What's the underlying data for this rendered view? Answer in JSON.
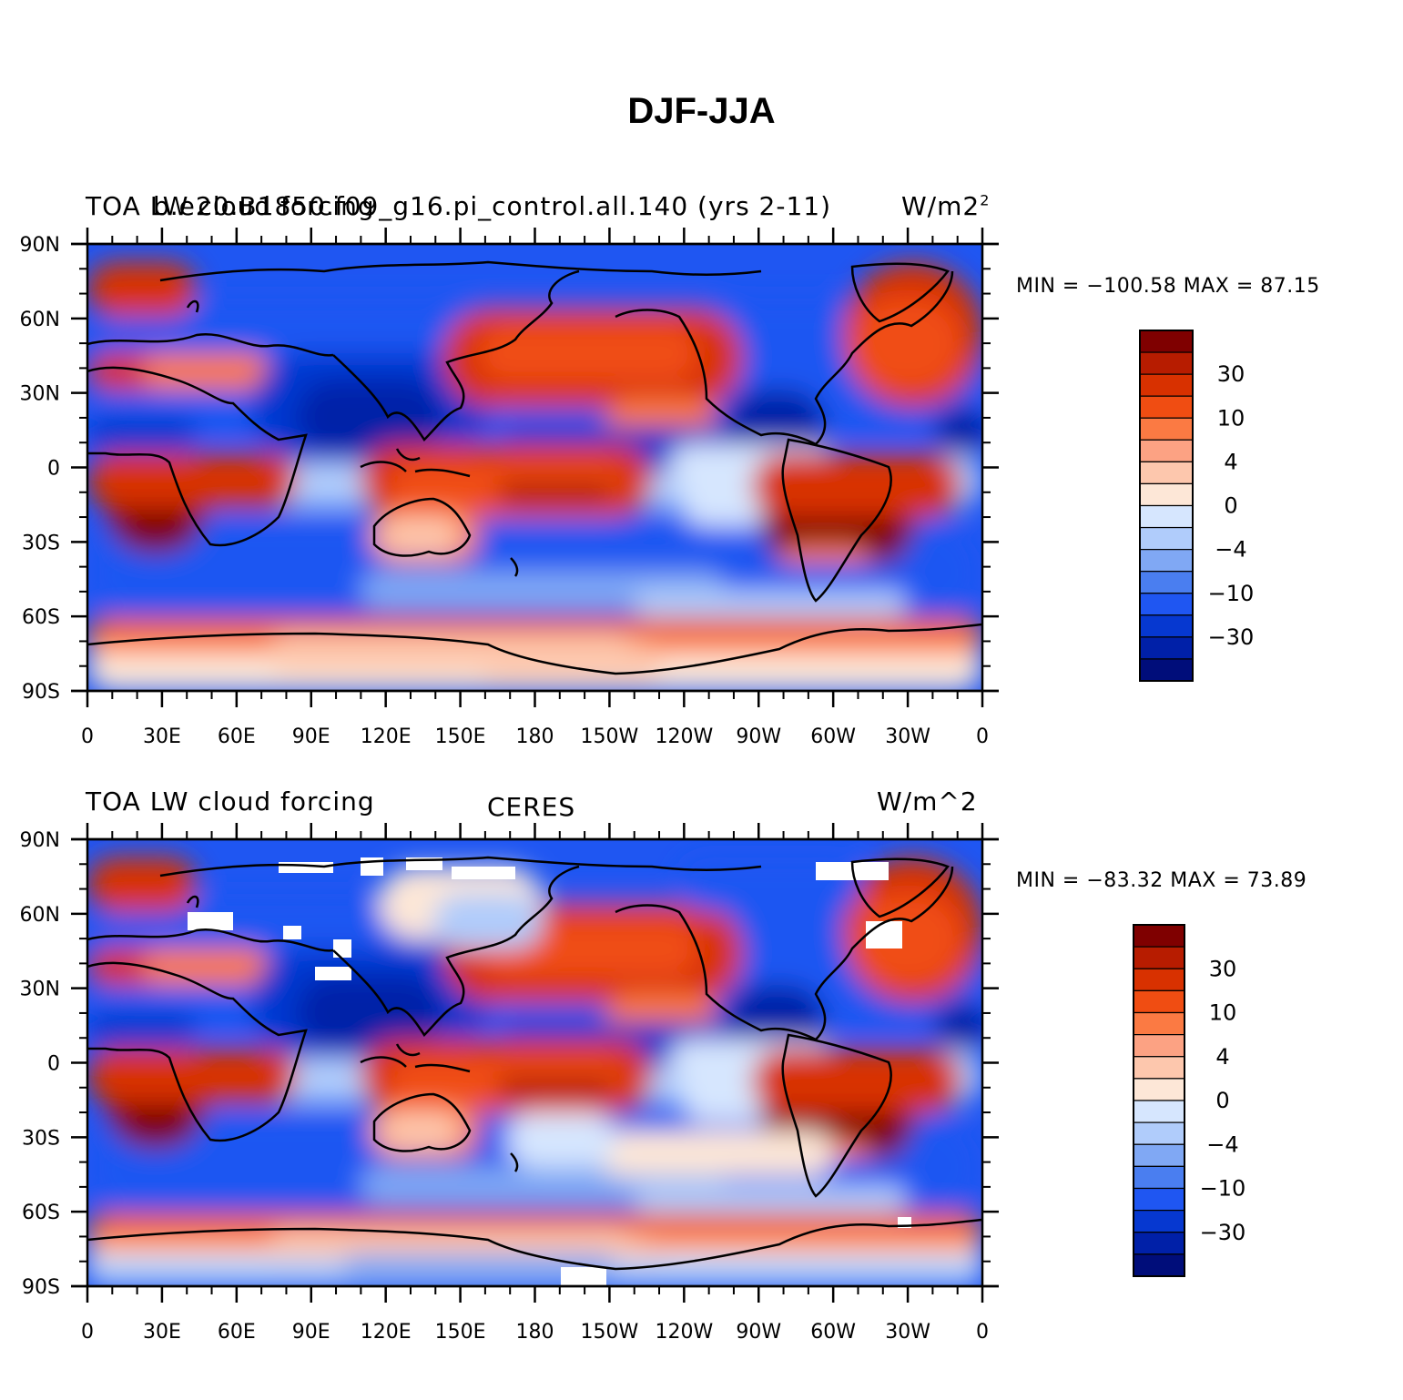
{
  "title": "DJF-JJA",
  "panels": [
    {
      "id": "top",
      "left_title": "TOA LW cloud forcing",
      "center_title": "b.e20.B1850.f09_g16.pi_control.all.140 (yrs 2-11)",
      "units": "W/m2",
      "units_sup": "2",
      "min_max": "MIN = −100.58  MAX =   87.15"
    },
    {
      "id": "bottom",
      "left_title": "TOA LW cloud forcing",
      "center_title": "CERES",
      "units": "W/m^2",
      "min_max": "MIN = −83.32  MAX =   73.89"
    }
  ],
  "axes": {
    "lat_labels": [
      "90N",
      "60N",
      "30N",
      "0",
      "30S",
      "60S",
      "90S"
    ],
    "lon_labels": [
      "0",
      "30E",
      "60E",
      "90E",
      "120E",
      "150E",
      "180",
      "150W",
      "120W",
      "90W",
      "60W",
      "30W",
      "0"
    ]
  },
  "colorbar": {
    "labels": [
      "30",
      "10",
      "4",
      "0",
      "−4",
      "−10",
      "−30"
    ],
    "colors": [
      "#7f0000",
      "#b71c00",
      "#d83100",
      "#f04d12",
      "#fb7a43",
      "#fca283",
      "#fdc7ad",
      "#fde7d7",
      "#d6e6fe",
      "#b0ccfb",
      "#80a8f4",
      "#4a7ef0",
      "#1f56f2",
      "#0638d0",
      "#0020a8",
      "#000d7a"
    ]
  },
  "colors": {
    "land_outline": "#000000",
    "background": "#ffffff"
  }
}
